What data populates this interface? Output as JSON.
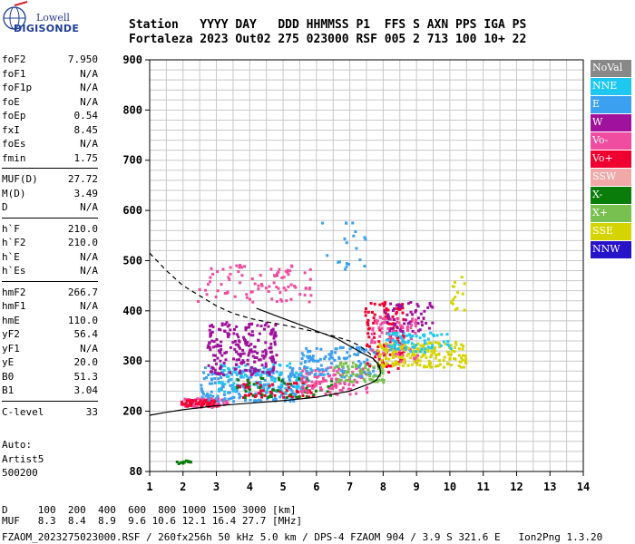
{
  "logo": {
    "line1": "Lowell",
    "line2": "DIGISONDE"
  },
  "header": {
    "line1": "Station   YYYY DAY   DDD HHMMSS P1  FFS S AXN PPS IGA PS",
    "line2": "Fortaleza 2023 Out02 275 023000 RSF 005 2 713 100 10+ 22"
  },
  "params": {
    "group1": [
      {
        "label": "foF2",
        "value": "7.950"
      },
      {
        "label": "foF1",
        "value": "N/A"
      },
      {
        "label": "foF1p",
        "value": "N/A"
      },
      {
        "label": "foE",
        "value": "N/A"
      },
      {
        "label": "foEp",
        "value": "0.54"
      },
      {
        "label": "fxI",
        "value": "8.45"
      },
      {
        "label": "foEs",
        "value": "N/A"
      },
      {
        "label": "fmin",
        "value": "1.75"
      }
    ],
    "group2": [
      {
        "label": "MUF(D)",
        "value": "27.72"
      },
      {
        "label": "M(D)",
        "value": "3.49"
      },
      {
        "label": "D",
        "value": "N/A"
      }
    ],
    "group3": [
      {
        "label": "h`F",
        "value": "210.0"
      },
      {
        "label": "h`F2",
        "value": "210.0"
      },
      {
        "label": "h`E",
        "value": "N/A"
      },
      {
        "label": "h`Es",
        "value": "N/A"
      }
    ],
    "group4": [
      {
        "label": "hmF2",
        "value": "266.7"
      },
      {
        "label": "hmF1",
        "value": "N/A"
      },
      {
        "label": "hmE",
        "value": "110.0"
      },
      {
        "label": "yF2",
        "value": "56.4"
      },
      {
        "label": "yF1",
        "value": "N/A"
      },
      {
        "label": "yE",
        "value": "20.0"
      },
      {
        "label": "B0",
        "value": "51.3"
      },
      {
        "label": "B1",
        "value": "3.04"
      }
    ],
    "group5": [
      {
        "label": "C-level",
        "value": "33"
      }
    ]
  },
  "auto": {
    "line1": "Auto:",
    "line2": "Artist5",
    "line3": "500200"
  },
  "footer": {
    "line1": "D     100  200  400  600  800 1000 1500 3000 [km]",
    "line2": "MUF   8.3  8.4  8.9  9.6 10.6 12.1 16.4 27.7 [MHz]",
    "line3": "FZAOM_2023275023000.RSF / 260fx256h 50 kHz 5.0 km / DPS-4 FZAOM 904 / 3.9 S 321.6 E   Ion2Png 1.3.20"
  },
  "legend": [
    {
      "label": "NoVal",
      "color": "#888888"
    },
    {
      "label": "NNE",
      "color": "#1ec8f0"
    },
    {
      "label": "E",
      "color": "#3ca0f0"
    },
    {
      "label": "W",
      "color": "#a0129c"
    },
    {
      "label": "Vo-",
      "color": "#f04ca0"
    },
    {
      "label": "Vo+",
      "color": "#f00030"
    },
    {
      "label": "SSW",
      "color": "#f0a8a8"
    },
    {
      "label": "X-",
      "color": "#0a7c0a"
    },
    {
      "label": "X+",
      "color": "#78c050"
    },
    {
      "label": "SSE",
      "color": "#d4d400"
    },
    {
      "label": "NNW",
      "color": "#2814c8"
    }
  ],
  "chart_data": {
    "type": "scatter",
    "xlim": [
      1,
      14
    ],
    "ylim": [
      80,
      900
    ],
    "xticks": [
      1,
      2,
      3,
      4,
      5,
      6,
      7,
      8,
      9,
      10,
      11,
      12,
      13,
      14
    ],
    "yticks": [
      80,
      200,
      300,
      400,
      500,
      600,
      700,
      800,
      900
    ],
    "grid": true,
    "profile_solid": [
      [
        1.0,
        192
      ],
      [
        1.5,
        198
      ],
      [
        2.0,
        203
      ],
      [
        2.5,
        207
      ],
      [
        3.0,
        211
      ],
      [
        4.0,
        216
      ],
      [
        5.0,
        221
      ],
      [
        6.0,
        228
      ],
      [
        7.0,
        240
      ],
      [
        7.6,
        255
      ],
      [
        7.8,
        262
      ],
      [
        7.92,
        275
      ],
      [
        7.9,
        290
      ],
      [
        7.7,
        305
      ],
      [
        7.4,
        315
      ],
      [
        7.0,
        330
      ],
      [
        6.6,
        345
      ],
      [
        6.0,
        360
      ],
      [
        5.4,
        375
      ],
      [
        4.8,
        390
      ],
      [
        4.2,
        405
      ]
    ],
    "profile_dashed": [
      [
        1.0,
        515
      ],
      [
        1.5,
        480
      ],
      [
        2.0,
        450
      ],
      [
        2.5,
        430
      ],
      [
        3.0,
        410
      ],
      [
        3.5,
        395
      ],
      [
        4.0,
        385
      ],
      [
        4.5,
        378
      ],
      [
        5.0,
        372
      ],
      [
        5.5,
        365
      ],
      [
        6.0,
        358
      ],
      [
        6.5,
        350
      ],
      [
        7.0,
        340
      ],
      [
        7.3,
        330
      ],
      [
        7.6,
        315
      ],
      [
        7.95,
        280
      ]
    ],
    "clusters": [
      {
        "series": "Vo-",
        "x": [
          1.9,
          3.3
        ],
        "y": [
          210,
          228
        ],
        "n": 90
      },
      {
        "series": "Vo+",
        "x": [
          1.9,
          3.0
        ],
        "y": [
          212,
          225
        ],
        "n": 50
      },
      {
        "series": "E",
        "x": [
          2.5,
          5.5
        ],
        "y": [
          222,
          290
        ],
        "n": 220
      },
      {
        "series": "NNE",
        "x": [
          3.0,
          5.8
        ],
        "y": [
          240,
          300
        ],
        "n": 90
      },
      {
        "series": "W",
        "x": [
          2.7,
          4.8
        ],
        "y": [
          275,
          380
        ],
        "n": 220
      },
      {
        "series": "Vo-",
        "x": [
          2.4,
          5.8
        ],
        "y": [
          420,
          500
        ],
        "n": 90
      },
      {
        "series": "Vo+",
        "x": [
          3.5,
          6.0
        ],
        "y": [
          230,
          260
        ],
        "n": 60
      },
      {
        "series": "X-",
        "x": [
          3.5,
          6.5
        ],
        "y": [
          230,
          270
        ],
        "n": 50
      },
      {
        "series": "Vo-",
        "x": [
          5.5,
          7.5
        ],
        "y": [
          235,
          290
        ],
        "n": 120
      },
      {
        "series": "E",
        "x": [
          5.5,
          7.8
        ],
        "y": [
          270,
          330
        ],
        "n": 120
      },
      {
        "series": "X+",
        "x": [
          6.5,
          8.0
        ],
        "y": [
          260,
          300
        ],
        "n": 70
      },
      {
        "series": "Vo+",
        "x": [
          7.4,
          8.6
        ],
        "y": [
          280,
          420
        ],
        "n": 120
      },
      {
        "series": "Vo-",
        "x": [
          7.6,
          9.0
        ],
        "y": [
          300,
          390
        ],
        "n": 90
      },
      {
        "series": "SSE",
        "x": [
          7.8,
          10.5
        ],
        "y": [
          290,
          340
        ],
        "n": 170
      },
      {
        "series": "NNE",
        "x": [
          8.0,
          10.0
        ],
        "y": [
          320,
          360
        ],
        "n": 70
      },
      {
        "series": "W",
        "x": [
          8.0,
          9.5
        ],
        "y": [
          360,
          420
        ],
        "n": 60
      },
      {
        "series": "E",
        "x": [
          6.0,
          7.5
        ],
        "y": [
          480,
          580
        ],
        "n": 20
      },
      {
        "series": "SSE",
        "x": [
          10.0,
          10.4
        ],
        "y": [
          400,
          470
        ],
        "n": 15
      },
      {
        "series": "X-",
        "x": [
          1.7,
          2.2
        ],
        "y": [
          98,
          104
        ],
        "n": 12
      }
    ]
  }
}
